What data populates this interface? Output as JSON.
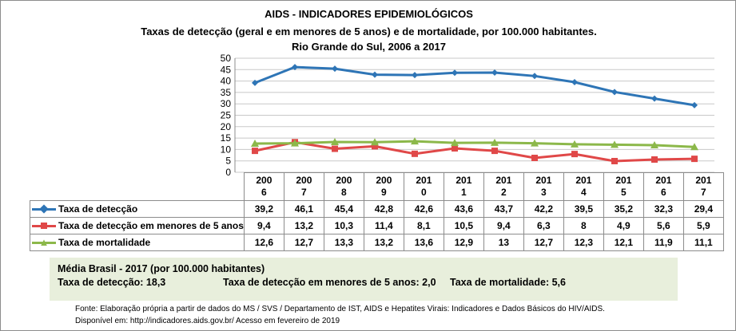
{
  "chart_data": {
    "type": "line",
    "title": "AIDS - INDICADORES EPIDEMIOLÓGICOS",
    "subtitle": "Taxas de detecção (geral e em menores de 5 anos) e de mortalidade, por 100.000 habitantes.",
    "subtitle2": "Rio Grande do Sul, 2006 a 2017",
    "categories": [
      "2006",
      "2007",
      "2008",
      "2009",
      "2010",
      "2011",
      "2012",
      "2013",
      "2014",
      "2015",
      "2016",
      "2017"
    ],
    "ylim": [
      0,
      50
    ],
    "yticks": [
      0,
      5,
      10,
      15,
      20,
      25,
      30,
      35,
      40,
      45,
      50
    ],
    "grid": true,
    "legend": "data-table",
    "series": [
      {
        "name": "Taxa de detecção",
        "color": "#2e75b6",
        "marker": "diamond",
        "values": [
          "39,2",
          "46,1",
          "45,4",
          "42,8",
          "42,6",
          "43,6",
          "43,7",
          "42,2",
          "39,5",
          "35,2",
          "32,3",
          "29,4"
        ]
      },
      {
        "name": "Taxa de detecção em menores de 5 anos",
        "color": "#e04848",
        "marker": "square",
        "values": [
          "9,4",
          "13,2",
          "10,3",
          "11,4",
          "8,1",
          "10,5",
          "9,4",
          "6,3",
          "8",
          "4,9",
          "5,6",
          "5,9"
        ]
      },
      {
        "name": "Taxa de mortalidade",
        "color": "#8cb84a",
        "marker": "triangle",
        "values": [
          "12,6",
          "12,7",
          "13,3",
          "13,2",
          "13,6",
          "12,9",
          "13",
          "12,7",
          "12,3",
          "12,1",
          "11,9",
          "11,1"
        ]
      }
    ]
  },
  "summary": {
    "title": "Média Brasil - 2017  (por 100.000 habitantes)",
    "detection": "Taxa de detecção: 18,3",
    "under5": "Taxa de detecção em menores de 5 anos: 2,0",
    "mortality": "Taxa de mortalidade: 5,6"
  },
  "footer": {
    "source": "Fonte: Elaboração própria a partir de dados do MS / SVS / Departamento de IST, AIDS e Hepatites Virais: Indicadores e Dados Básicos do HIV/AIDS.",
    "available": "Disponível em: http://indicadores.aids.gov.br/   Acesso em fevereiro de 2019"
  }
}
